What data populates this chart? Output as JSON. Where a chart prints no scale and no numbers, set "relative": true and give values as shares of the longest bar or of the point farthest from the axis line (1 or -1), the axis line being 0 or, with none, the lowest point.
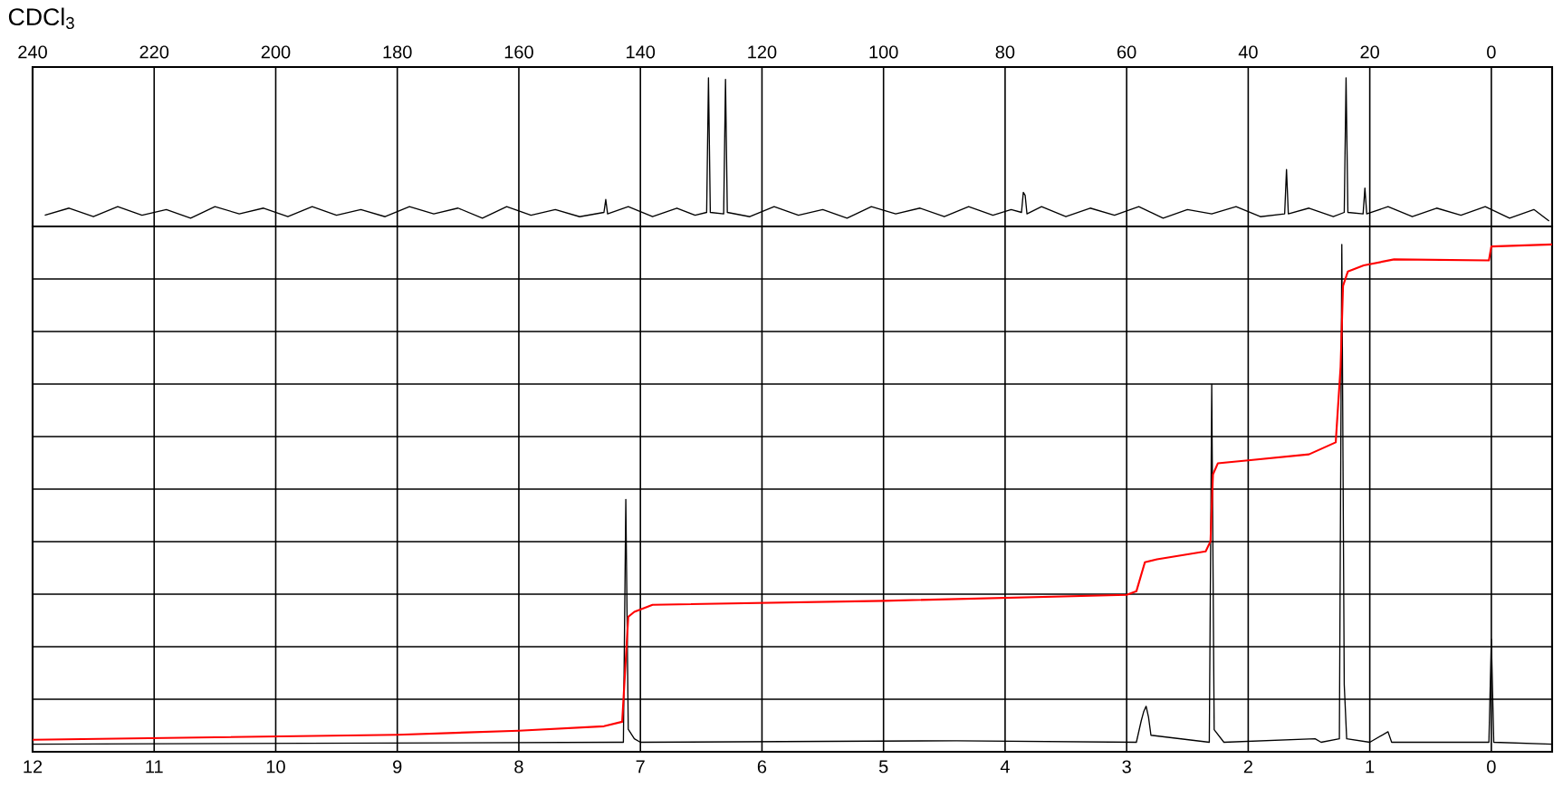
{
  "chart_data": [
    {
      "type": "line",
      "relative": true,
      "annotations": [
        "CDCl$_{3}$"
      ],
      "xlim": [
        240,
        -10
      ],
      "xticks": [
        240,
        220,
        200,
        180,
        160,
        140,
        120,
        100,
        80,
        60,
        40,
        20,
        0
      ],
      "grid": "x",
      "tick_labels": "x",
      "marker": "none",
      "line_style": "solid",
      "series": [
        {
          "color": "#000000",
          "x": [
            238,
            234,
            230,
            226,
            222,
            218,
            214,
            210,
            206,
            202,
            198,
            194,
            190,
            186,
            182,
            178,
            174,
            170,
            166,
            162,
            158,
            154,
            150,
            146,
            145.7,
            145.4,
            142,
            138,
            134,
            131,
            129.1,
            128.8,
            128.5,
            126.3,
            126.0,
            125.7,
            122,
            118,
            114,
            110,
            106,
            102,
            98,
            94,
            90,
            86,
            82,
            79,
            77.3,
            77.0,
            76.7,
            76.4,
            74,
            70,
            66,
            62,
            58,
            54,
            50,
            46,
            42,
            38,
            34.0,
            33.7,
            33.4,
            30,
            26,
            24.2,
            23.9,
            23.6,
            21.1,
            20.8,
            20.5,
            17,
            13,
            9,
            5,
            1,
            -3,
            -7,
            -9.5
          ],
          "values": [
            0.04,
            0.09,
            0.03,
            0.1,
            0.04,
            0.08,
            0.02,
            0.1,
            0.05,
            0.09,
            0.03,
            0.1,
            0.04,
            0.08,
            0.03,
            0.1,
            0.05,
            0.09,
            0.02,
            0.1,
            0.04,
            0.08,
            0.03,
            0.06,
            0.15,
            0.05,
            0.1,
            0.03,
            0.09,
            0.04,
            0.06,
            1.0,
            0.06,
            0.05,
            0.99,
            0.06,
            0.03,
            0.1,
            0.04,
            0.08,
            0.02,
            0.1,
            0.05,
            0.09,
            0.03,
            0.1,
            0.04,
            0.08,
            0.06,
            0.2,
            0.18,
            0.05,
            0.1,
            0.03,
            0.09,
            0.04,
            0.1,
            0.02,
            0.08,
            0.05,
            0.1,
            0.03,
            0.05,
            0.36,
            0.05,
            0.09,
            0.03,
            0.06,
            1.0,
            0.06,
            0.05,
            0.23,
            0.05,
            0.1,
            0.03,
            0.09,
            0.04,
            0.1,
            0.02,
            0.08,
            0.0
          ]
        }
      ]
    },
    {
      "type": "line",
      "relative": true,
      "xlim": [
        12,
        -0.5
      ],
      "xticks": [
        12,
        11,
        10,
        9,
        8,
        7,
        6,
        5,
        4,
        3,
        2,
        1,
        0
      ],
      "grid": true,
      "tick_labels": "x",
      "marker": "none",
      "line_style": "solid",
      "series": [
        {
          "color": "#000000",
          "x": [
            12,
            7.2,
            7.14,
            7.12,
            7.1,
            7.05,
            7.0,
            4.4,
            2.92,
            2.88,
            2.86,
            2.84,
            2.82,
            2.8,
            2.32,
            2.3,
            2.28,
            2.2,
            1.45,
            1.4,
            1.25,
            1.23,
            1.21,
            1.19,
            1.0,
            0.85,
            0.82,
            0.02,
            0.0,
            -0.02,
            -0.5
          ],
          "values": [
            0,
            0.004,
            0.004,
            0.49,
            0.03,
            0.011,
            0.004,
            0.007,
            0.004,
            0.047,
            0.065,
            0.076,
            0.054,
            0.018,
            0.004,
            0.72,
            0.029,
            0.004,
            0.011,
            0.004,
            0.011,
            1.0,
            0.119,
            0.011,
            0.004,
            0.025,
            0.004,
            0.004,
            0.21,
            0.004,
            0
          ]
        },
        {
          "color": "#ff0000",
          "x": [
            12,
            9,
            8,
            7.3,
            7.15,
            7.1,
            7.05,
            6.9,
            5,
            3.0,
            2.92,
            2.85,
            2.75,
            2.35,
            2.31,
            2.29,
            2.25,
            2.0,
            1.5,
            1.28,
            1.24,
            1.22,
            1.18,
            1.05,
            0.8,
            0.02,
            0.0,
            -0.5
          ],
          "values": [
            0.009,
            0.019,
            0.027,
            0.036,
            0.045,
            0.255,
            0.265,
            0.279,
            0.287,
            0.299,
            0.306,
            0.364,
            0.37,
            0.386,
            0.406,
            0.54,
            0.562,
            0.568,
            0.58,
            0.604,
            0.755,
            0.917,
            0.946,
            0.958,
            0.97,
            0.968,
            0.996,
            1.0
          ]
        }
      ]
    }
  ]
}
